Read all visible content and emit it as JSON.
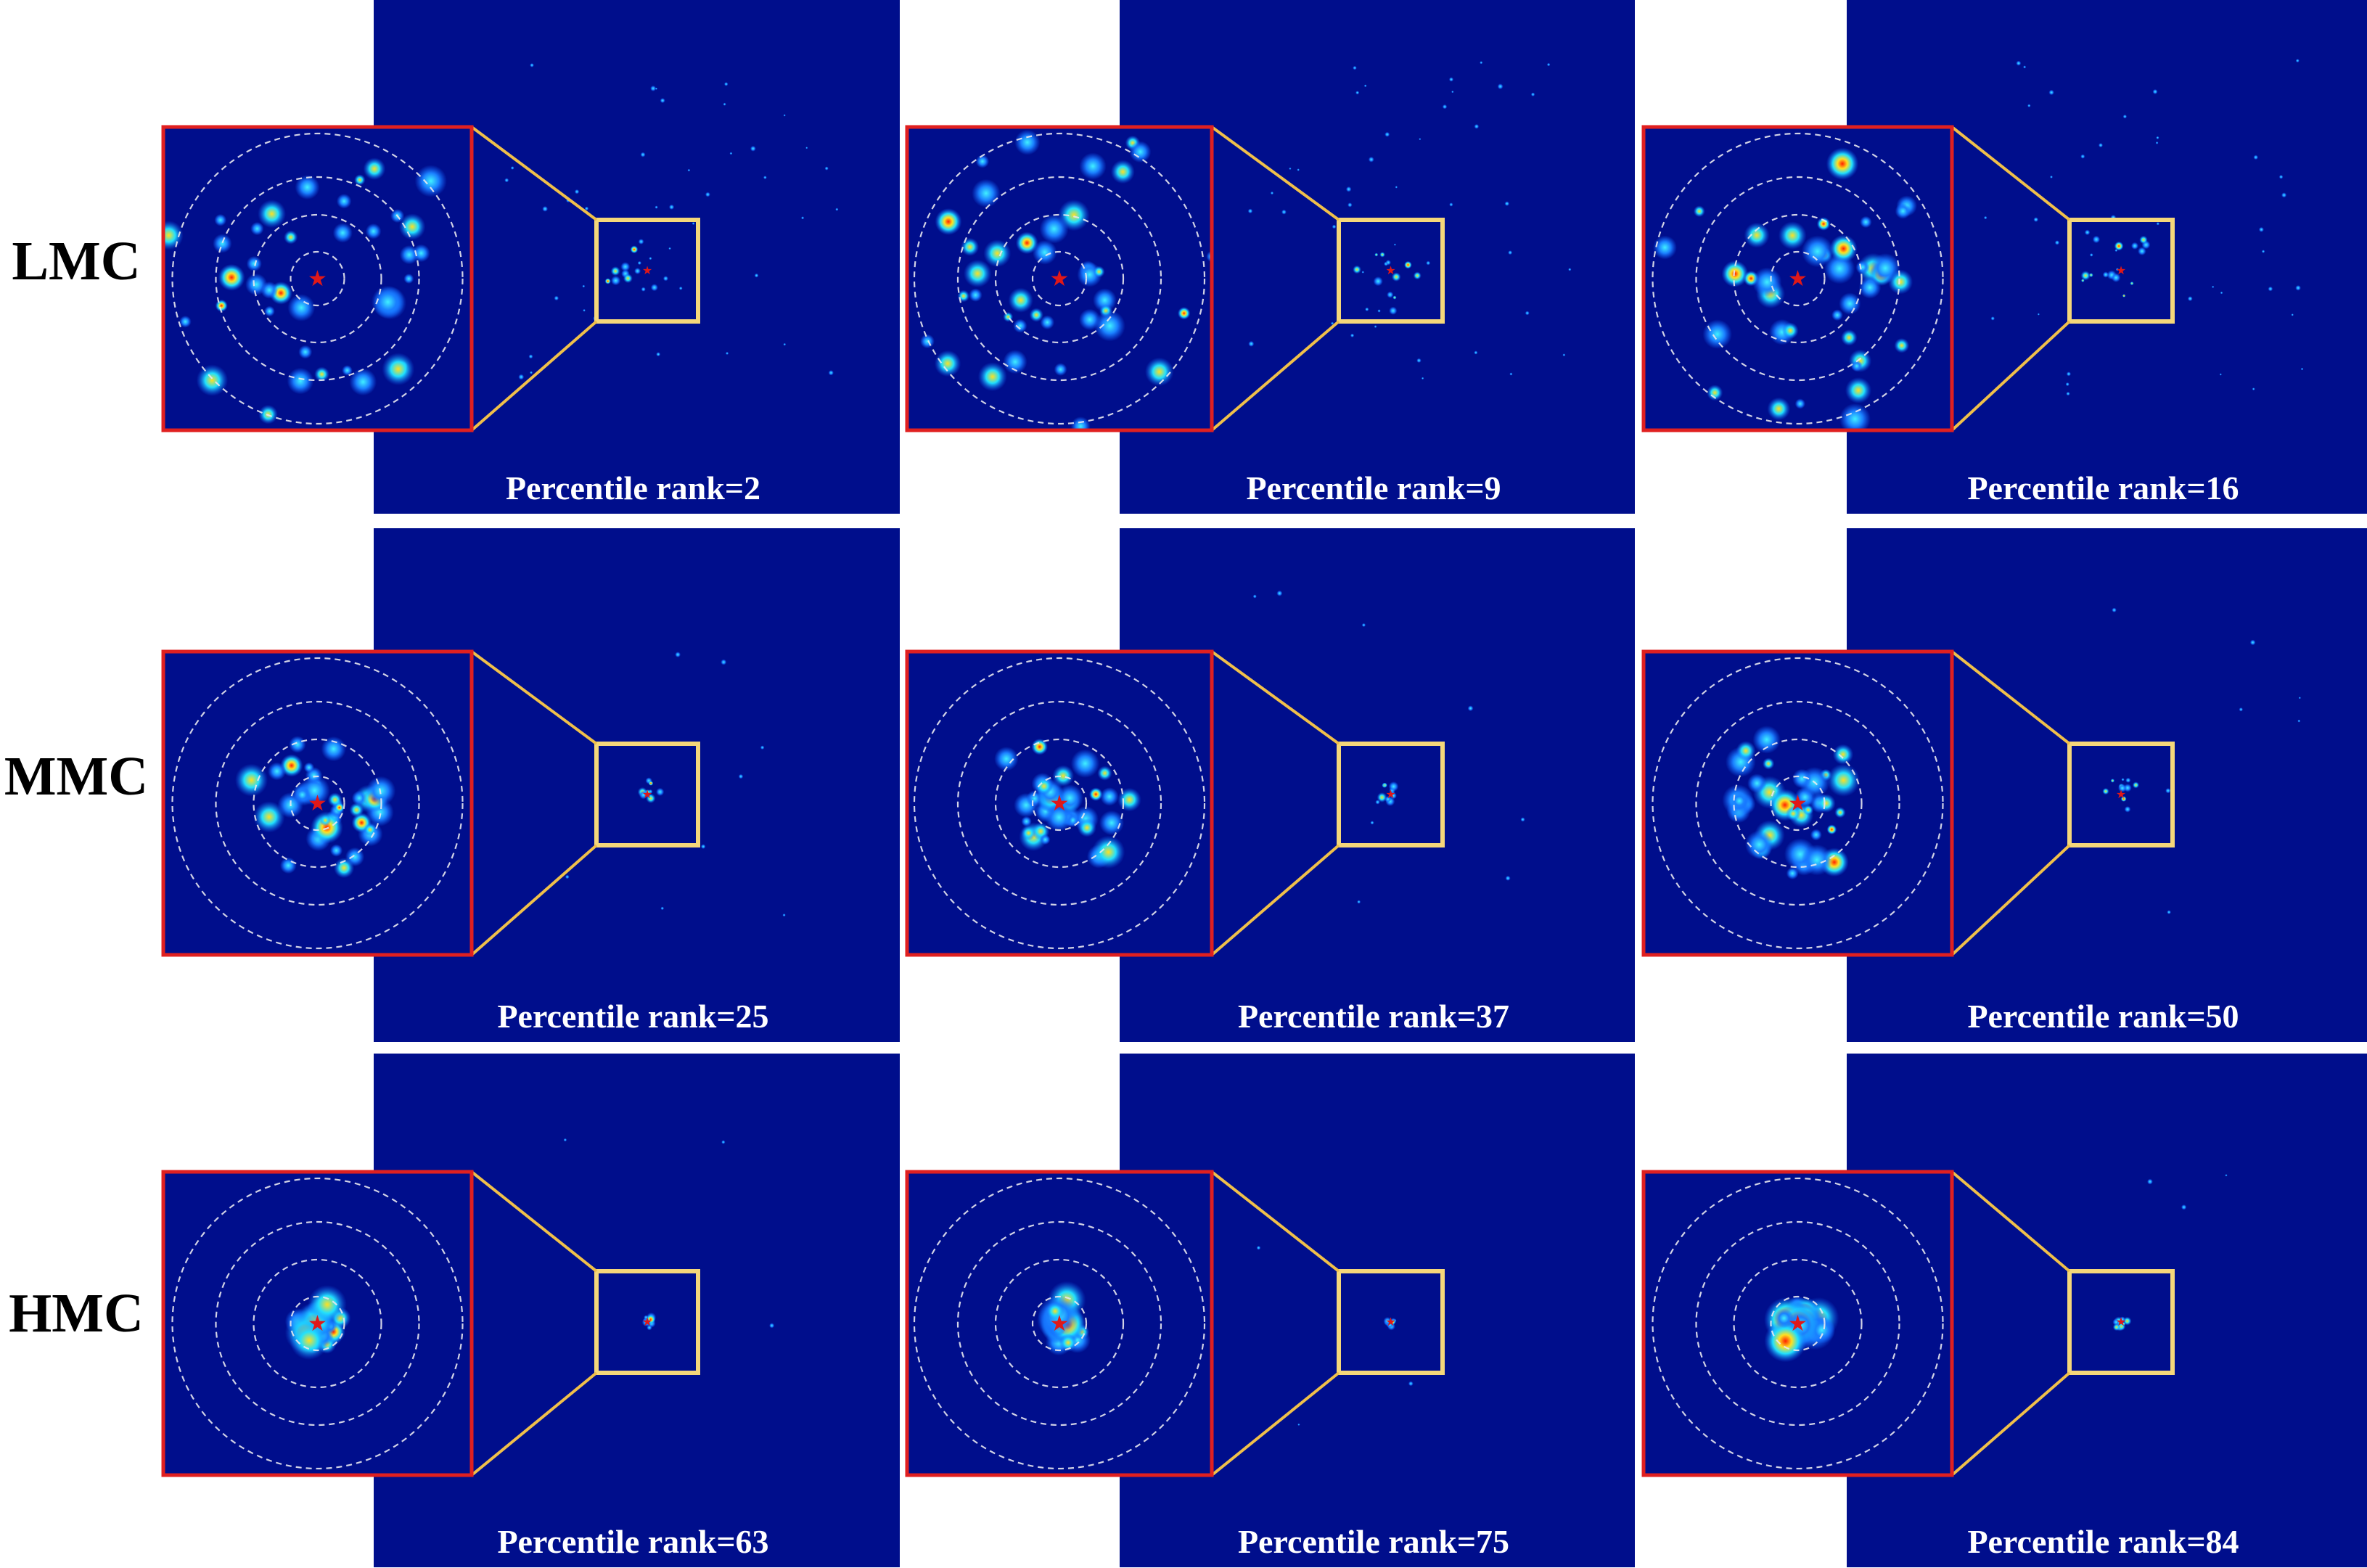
{
  "rows": [
    {
      "label": "LMC"
    },
    {
      "label": "MMC"
    },
    {
      "label": "HMC"
    }
  ],
  "panels": [
    {
      "caption": "Percentile rank=2",
      "group": "LMC",
      "spread": "scattered"
    },
    {
      "caption": "Percentile rank=9",
      "group": "LMC",
      "spread": "scattered"
    },
    {
      "caption": "Percentile rank=16",
      "group": "LMC",
      "spread": "scattered"
    },
    {
      "caption": "Percentile rank=25",
      "group": "MMC",
      "spread": "clustered"
    },
    {
      "caption": "Percentile rank=37",
      "group": "MMC",
      "spread": "clustered"
    },
    {
      "caption": "Percentile rank=50",
      "group": "MMC",
      "spread": "clustered"
    },
    {
      "caption": "Percentile rank=63",
      "group": "HMC",
      "spread": "central"
    },
    {
      "caption": "Percentile rank=75",
      "group": "HMC",
      "spread": "central"
    },
    {
      "caption": "Percentile rank=84",
      "group": "HMC",
      "spread": "central"
    }
  ],
  "colors": {
    "background_map": "#000e8c",
    "inset_border": "#e02020",
    "zoom_box": "#f5d77a",
    "connector_lines": "#f0c04a",
    "rings": "#e8e8f0",
    "center_star": "#e01818",
    "heat_low": "#1060ff",
    "heat_mid": "#20e0ff",
    "heat_high": "#ffe020",
    "heat_peak": "#ff2000"
  }
}
